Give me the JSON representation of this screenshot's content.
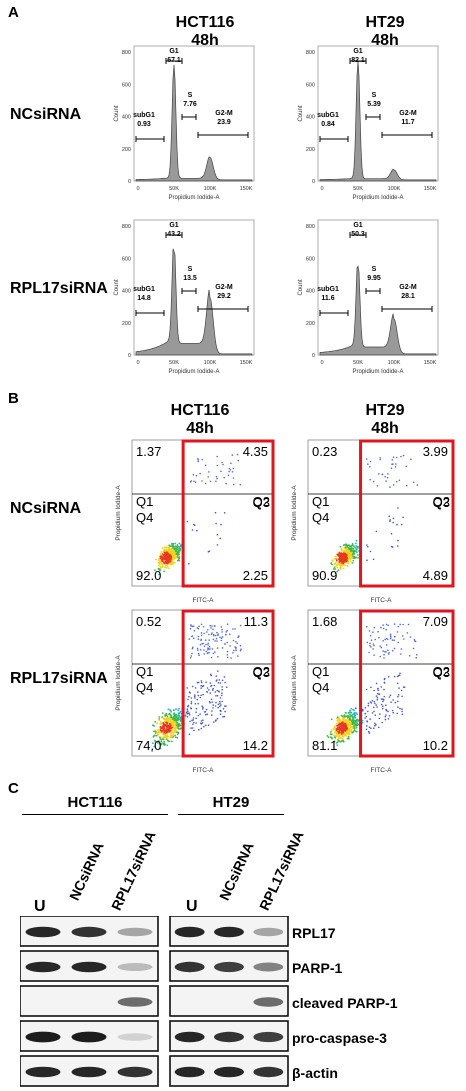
{
  "panels": {
    "a": "A",
    "b": "B",
    "c": "C"
  },
  "cell_lines": {
    "hct116": "HCT116",
    "ht29": "HT29",
    "time": "48h"
  },
  "conditions": {
    "nc": "NCsiRNA",
    "rpl17": "RPL17siRNA"
  },
  "cell_cycle": {
    "xlabel": "Propidium Iodide-A",
    "ylabel": "Count",
    "xticks": [
      "0",
      "50K",
      "100K",
      "150K"
    ],
    "yticks": [
      "0",
      "200",
      "400",
      "600",
      "800"
    ],
    "plots": [
      {
        "line": "HCT116",
        "condition": "NCsiRNA",
        "subG1": "0.93",
        "G1": "67.1",
        "S": "7.76",
        "G2M": "23.9"
      },
      {
        "line": "HT29",
        "condition": "NCsiRNA",
        "subG1": "0.84",
        "G1": "82.1",
        "S": "5.39",
        "G2M": "11.7"
      },
      {
        "line": "HCT116",
        "condition": "RPL17siRNA",
        "subG1": "14.8",
        "G1": "43.2",
        "S": "13.5",
        "G2M": "29.2"
      },
      {
        "line": "HT29",
        "condition": "RPL17siRNA",
        "subG1": "11.6",
        "G1": "50.3",
        "S": "9.95",
        "G2M": "28.1"
      }
    ],
    "gate_labels": {
      "subG1": "subG1",
      "G1": "G1",
      "S": "S",
      "G2M": "G2-M"
    }
  },
  "apoptosis": {
    "xlabel": "FITC-A",
    "ylabel": "Propidium Iodide-A",
    "quadrants": [
      "Q1",
      "Q2",
      "Q3",
      "Q4"
    ],
    "plots": [
      {
        "line": "HCT116",
        "condition": "NCsiRNA",
        "q1": "1.37",
        "q2": "4.35",
        "q3": "2.25",
        "q4": "92.0"
      },
      {
        "line": "HT29",
        "condition": "NCsiRNA",
        "q1": "0.23",
        "q2": "3.99",
        "q3": "4.89",
        "q4": "90.9"
      },
      {
        "line": "HCT116",
        "condition": "RPL17siRNA",
        "q1": "0.52",
        "q2": "11.3",
        "q3": "14.2",
        "q4": "74.0"
      },
      {
        "line": "HT29",
        "condition": "RPL17siRNA",
        "q1": "1.68",
        "q2": "7.09",
        "q3": "10.2",
        "q4": "81.1"
      }
    ],
    "highlight_color": "#e0161e"
  },
  "western": {
    "lanes": [
      "U",
      "NCsiRNA",
      "RPL17siRNA"
    ],
    "proteins": [
      "RPL17",
      "PARP-1",
      "cleaved PARP-1",
      "pro-caspase-3",
      "β-actin"
    ],
    "band_intensity": {
      "hct116": [
        [
          0.9,
          0.85,
          0.35
        ],
        [
          0.9,
          0.9,
          0.25
        ],
        [
          0.0,
          0.0,
          0.6
        ],
        [
          0.95,
          0.95,
          0.15
        ],
        [
          0.9,
          0.9,
          0.85
        ]
      ],
      "ht29": [
        [
          0.9,
          0.9,
          0.35
        ],
        [
          0.85,
          0.8,
          0.5
        ],
        [
          0.0,
          0.0,
          0.6
        ],
        [
          0.9,
          0.85,
          0.8
        ],
        [
          0.9,
          0.9,
          0.85
        ]
      ]
    }
  }
}
